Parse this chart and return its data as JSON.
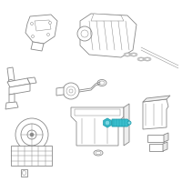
{
  "bg_color": "#ffffff",
  "line_color": "#888888",
  "line_color_dark": "#666666",
  "highlight_color": "#3bbfce",
  "highlight_dark": "#1a9aaa",
  "highlight_light": "#7dd8e4",
  "figsize": [
    2.0,
    2.0
  ],
  "dpi": 100,
  "lw": 0.6,
  "lw_thin": 0.35,
  "lw_thick": 1.0
}
